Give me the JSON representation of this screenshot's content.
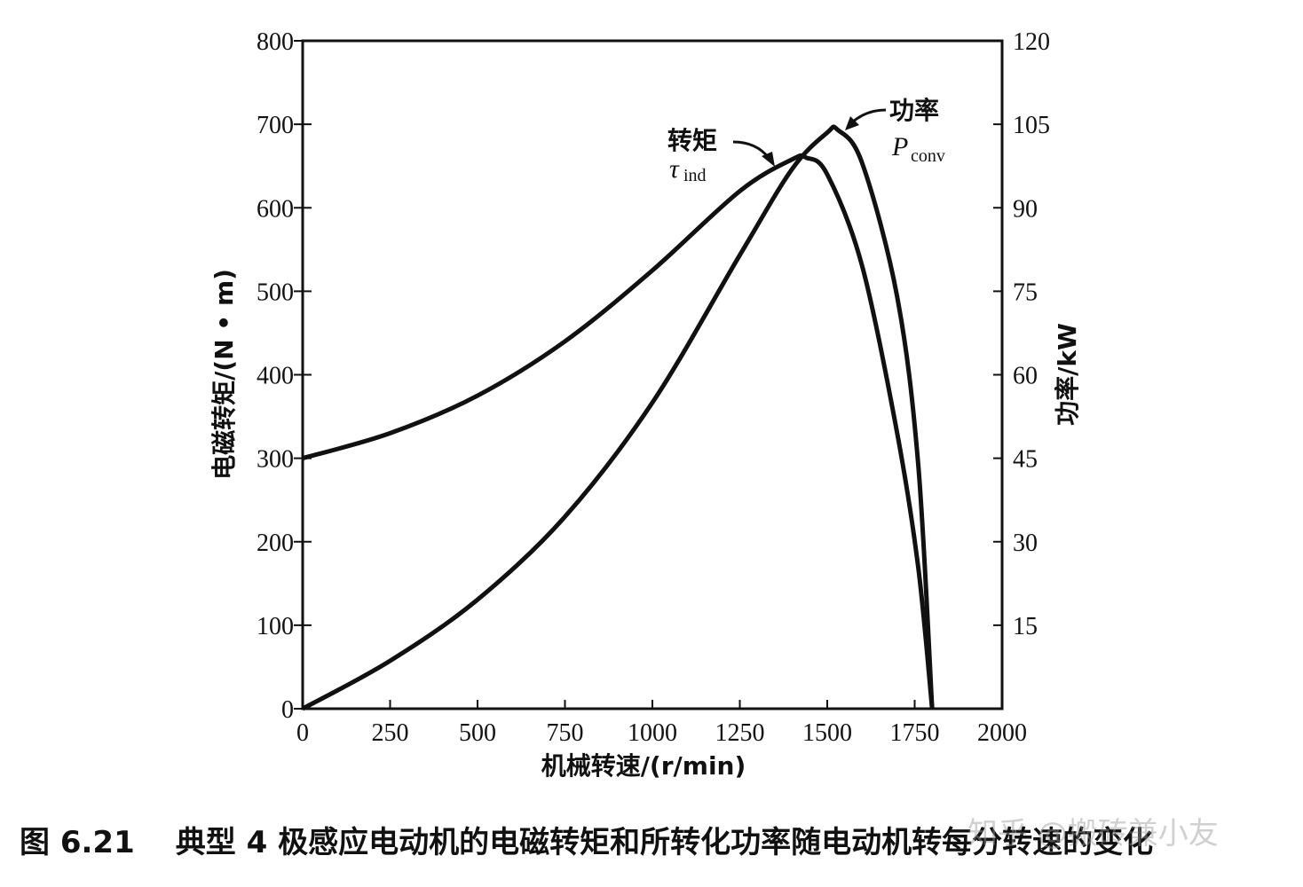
{
  "chart_data": {
    "type": "line",
    "xlabel": "机械转速/(r/min)",
    "ylabel_left": "电磁转矩/(N • m)",
    "ylabel_right": "功率/kW",
    "xlim": [
      0,
      2000
    ],
    "ylim_left": [
      0,
      800
    ],
    "ylim_right": [
      0,
      120
    ],
    "x_ticks": [
      "0",
      "250",
      "500",
      "750",
      "1000",
      "1250",
      "1500",
      "1750",
      "2000"
    ],
    "y_left_ticks": [
      "0",
      "100",
      "200",
      "300",
      "400",
      "500",
      "600",
      "700",
      "800"
    ],
    "y_right_ticks": [
      "15",
      "30",
      "45",
      "60",
      "75",
      "90",
      "105",
      "120"
    ],
    "grid": false,
    "series": [
      {
        "name": "转矩",
        "symbol": "τ",
        "subscript": "ind",
        "axis": "left",
        "x": [
          0,
          250,
          500,
          750,
          1000,
          1250,
          1400,
          1440,
          1500,
          1600,
          1700,
          1760,
          1800
        ],
        "y": [
          300,
          330,
          375,
          440,
          525,
          620,
          658,
          660,
          640,
          530,
          330,
          170,
          0
        ]
      },
      {
        "name": "功率",
        "symbol": "P",
        "subscript": "conv",
        "axis": "right",
        "x": [
          0,
          250,
          500,
          750,
          1000,
          1250,
          1400,
          1500,
          1530,
          1600,
          1700,
          1760,
          1800
        ],
        "y": [
          0,
          8.6,
          19.6,
          34.5,
          55,
          81.5,
          97,
          103.5,
          104,
          98,
          74,
          44,
          0
        ]
      }
    ]
  },
  "caption": {
    "figure_number": "图 6.21",
    "text": "典型 4 极感应电动机的电磁转矩和所转化功率随电动机转每分转速的变化"
  },
  "watermark": "知乎 @搬砖兼小友"
}
